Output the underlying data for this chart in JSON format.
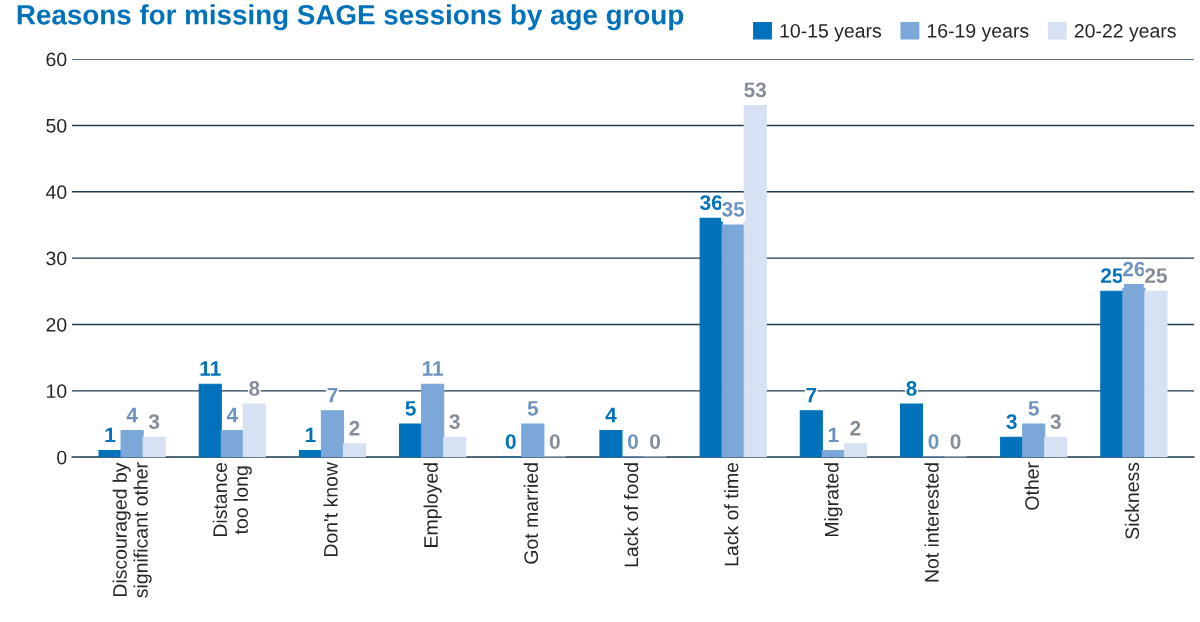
{
  "chart_data": {
    "type": "bar",
    "title": "Reasons for missing SAGE sessions by age group",
    "categories": [
      "Discouraged by\nsignificant other",
      "Distance\ntoo long",
      "Don't know",
      "Employed",
      "Got married",
      "Lack of food",
      "Lack of time",
      "Migrated",
      "Not interested",
      "Other",
      "Sickness"
    ],
    "series": [
      {
        "name": "10-15 years",
        "color": "#0072bc",
        "values": [
          1,
          11,
          1,
          5,
          0,
          4,
          36,
          7,
          8,
          3,
          25
        ]
      },
      {
        "name": "16-19 years",
        "color": "#7ba7d9",
        "values": [
          4,
          4,
          7,
          11,
          5,
          0,
          35,
          1,
          0,
          5,
          26
        ]
      },
      {
        "name": "20-22 years",
        "color": "#d6e1f3",
        "values": [
          3,
          8,
          2,
          3,
          0,
          0,
          53,
          2,
          0,
          3,
          25
        ]
      }
    ],
    "ylim": [
      0,
      60
    ],
    "yticks": [
      0,
      10,
      20,
      30,
      40,
      50,
      60
    ],
    "grid": "y",
    "legend": "top right",
    "data_labels": true
  }
}
